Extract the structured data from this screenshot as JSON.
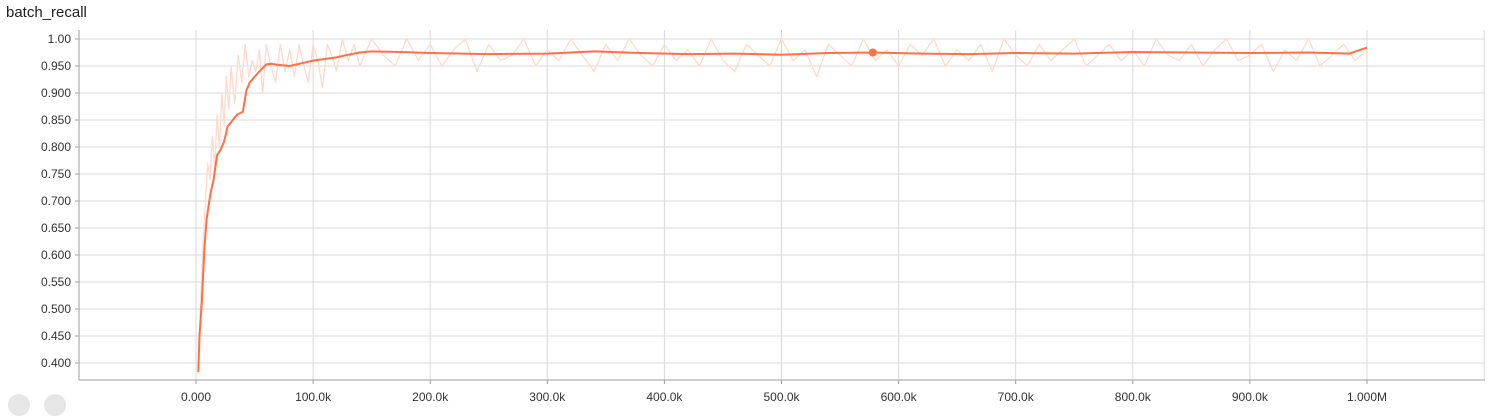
{
  "title": "batch_recall",
  "colors": {
    "smoothed": "#ff7043",
    "raw": "#ffd9cc",
    "grid": "#d9d9d9",
    "axis": "#9e9e9e"
  },
  "chart_data": {
    "type": "line",
    "title": "batch_recall",
    "xlabel": "",
    "ylabel": "",
    "xlim": [
      -100000,
      1100000
    ],
    "ylim": [
      0.38,
      1.005
    ],
    "x_ticks": [
      0,
      100000,
      200000,
      300000,
      400000,
      500000,
      600000,
      700000,
      800000,
      900000,
      1000000
    ],
    "x_tick_labels": [
      "0.000",
      "100.0k",
      "200.0k",
      "300.0k",
      "400.0k",
      "500.0k",
      "600.0k",
      "700.0k",
      "800.0k",
      "900.0k",
      "1.000M"
    ],
    "y_ticks": [
      0.4,
      0.45,
      0.5,
      0.55,
      0.6,
      0.65,
      0.7,
      0.75,
      0.8,
      0.85,
      0.9,
      0.95,
      1.0
    ],
    "y_tick_labels": [
      "0.400",
      "0.450",
      "0.500",
      "0.550",
      "0.600",
      "0.650",
      "0.700",
      "0.750",
      "0.800",
      "0.850",
      "0.900",
      "0.950",
      "1.00"
    ],
    "grid": true,
    "legend": false,
    "highlight_point": {
      "x": 578000,
      "y": 0.975
    },
    "series": [
      {
        "role": "smoothed",
        "x": [
          2000,
          3000,
          5000,
          7000,
          9000,
          12000,
          15000,
          18000,
          21000,
          24000,
          27000,
          30000,
          35000,
          40000,
          43000,
          46000,
          50000,
          55000,
          60000,
          65000,
          70000,
          80000,
          90000,
          100000,
          110000,
          120000,
          130000,
          140000,
          150000,
          175000,
          200000,
          250000,
          300000,
          340000,
          380000,
          420000,
          460000,
          500000,
          540000,
          578000,
          620000,
          660000,
          700000,
          750000,
          800000,
          850000,
          900000,
          950000,
          985000,
          1000000
        ],
        "y": [
          0.383,
          0.45,
          0.515,
          0.605,
          0.665,
          0.71,
          0.74,
          0.785,
          0.795,
          0.81,
          0.838,
          0.846,
          0.86,
          0.865,
          0.905,
          0.92,
          0.93,
          0.942,
          0.953,
          0.954,
          0.952,
          0.95,
          0.955,
          0.96,
          0.963,
          0.966,
          0.971,
          0.975,
          0.977,
          0.976,
          0.974,
          0.972,
          0.973,
          0.977,
          0.974,
          0.972,
          0.973,
          0.971,
          0.974,
          0.975,
          0.973,
          0.972,
          0.974,
          0.973,
          0.976,
          0.975,
          0.974,
          0.975,
          0.973,
          0.984
        ]
      },
      {
        "role": "raw",
        "x": [
          2000,
          4000,
          6000,
          8000,
          10000,
          12000,
          14000,
          16000,
          18000,
          20000,
          22000,
          24000,
          26000,
          28000,
          30000,
          33000,
          36000,
          39000,
          42000,
          45000,
          48000,
          51000,
          54000,
          57000,
          60000,
          64000,
          68000,
          72000,
          76000,
          80000,
          84000,
          88000,
          92000,
          96000,
          100000,
          104000,
          108000,
          112000,
          116000,
          120000,
          125000,
          130000,
          135000,
          140000,
          150000,
          160000,
          170000,
          180000,
          190000,
          200000,
          210000,
          220000,
          230000,
          240000,
          250000,
          260000,
          270000,
          280000,
          290000,
          300000,
          310000,
          320000,
          330000,
          340000,
          350000,
          360000,
          370000,
          380000,
          390000,
          400000,
          410000,
          420000,
          430000,
          440000,
          450000,
          460000,
          470000,
          480000,
          490000,
          500000,
          510000,
          520000,
          530000,
          540000,
          550000,
          560000,
          570000,
          580000,
          590000,
          600000,
          610000,
          620000,
          630000,
          640000,
          650000,
          660000,
          670000,
          680000,
          690000,
          700000,
          710000,
          720000,
          730000,
          740000,
          750000,
          760000,
          770000,
          780000,
          790000,
          800000,
          810000,
          820000,
          830000,
          840000,
          850000,
          860000,
          870000,
          880000,
          890000,
          900000,
          910000,
          920000,
          930000,
          940000,
          950000,
          960000,
          970000,
          980000,
          990000,
          1000000
        ],
        "y": [
          0.39,
          0.52,
          0.62,
          0.7,
          0.77,
          0.74,
          0.82,
          0.76,
          0.86,
          0.8,
          0.9,
          0.84,
          0.93,
          0.87,
          0.95,
          0.88,
          0.97,
          0.92,
          0.99,
          0.93,
          0.96,
          0.94,
          0.98,
          0.9,
          0.99,
          0.95,
          0.92,
          0.99,
          0.94,
          0.98,
          0.93,
          0.99,
          0.95,
          0.92,
          0.99,
          0.96,
          0.91,
          0.99,
          0.97,
          0.94,
          1.0,
          0.96,
          0.99,
          0.95,
          1.0,
          0.97,
          0.95,
          1.0,
          0.96,
          0.99,
          0.95,
          0.98,
          1.0,
          0.94,
          0.99,
          0.96,
          0.97,
          1.0,
          0.95,
          0.98,
          0.96,
          1.0,
          0.97,
          0.94,
          0.99,
          0.96,
          1.0,
          0.97,
          0.95,
          0.99,
          0.96,
          0.98,
          0.95,
          1.0,
          0.96,
          0.94,
          0.99,
          0.97,
          0.95,
          1.0,
          0.96,
          0.98,
          0.93,
          0.99,
          0.97,
          0.95,
          1.0,
          0.96,
          0.98,
          0.95,
          0.99,
          0.97,
          1.0,
          0.95,
          0.98,
          0.96,
          0.99,
          0.94,
          1.0,
          0.97,
          0.95,
          0.99,
          0.96,
          0.98,
          1.0,
          0.95,
          0.97,
          0.99,
          0.96,
          0.98,
          0.95,
          1.0,
          0.97,
          0.96,
          0.99,
          0.95,
          0.98,
          1.0,
          0.96,
          0.97,
          0.99,
          0.94,
          0.98,
          0.96,
          1.0,
          0.95,
          0.97,
          0.99,
          0.96,
          0.98
        ]
      }
    ]
  }
}
